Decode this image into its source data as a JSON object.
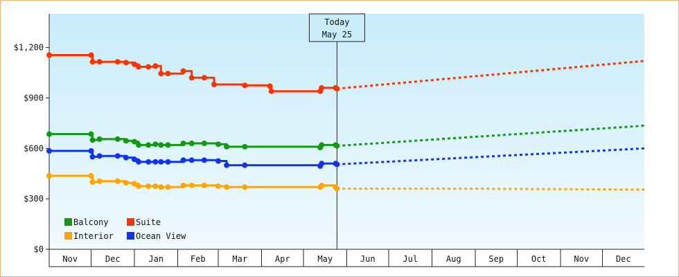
{
  "chart_data": {
    "type": "line",
    "ylim": [
      0,
      1400
    ],
    "y_ticks": [
      "$0",
      "$300",
      "$600",
      "$900",
      "$1,200"
    ],
    "y_tick_values": [
      0,
      300,
      600,
      900,
      1200
    ],
    "x_month_labels": [
      "Nov",
      "Dec",
      "Jan",
      "Feb",
      "Mar",
      "Apr",
      "May",
      "Jun",
      "Jul",
      "Aug",
      "Sep",
      "Oct",
      "Nov",
      "Dec"
    ],
    "x_range": [
      "2023-11-01",
      "2024-12-31"
    ],
    "month_starts": [
      "2023-11-01",
      "2023-12-01",
      "2024-01-01",
      "2024-02-01",
      "2024-03-01",
      "2024-04-01",
      "2024-05-01",
      "2024-06-01",
      "2024-07-01",
      "2024-08-01",
      "2024-09-01",
      "2024-10-01",
      "2024-11-01",
      "2024-12-01",
      "2025-01-01"
    ],
    "today": {
      "date": "2024-05-25",
      "label_line1": "Today",
      "label_line2": "May 25"
    },
    "grid": false,
    "legend_position": "bottom-left",
    "series": [
      {
        "name": "Suite",
        "color": "#ff3300",
        "points": [
          [
            "2023-11-01",
            1155
          ],
          [
            "2023-12-01",
            1155
          ],
          [
            "2023-12-02",
            1115
          ],
          [
            "2023-12-07",
            1115
          ],
          [
            "2023-12-20",
            1115
          ],
          [
            "2023-12-26",
            1110
          ],
          [
            "2024-01-01",
            1100
          ],
          [
            "2024-01-04",
            1085
          ],
          [
            "2024-01-11",
            1085
          ],
          [
            "2024-01-16",
            1090
          ],
          [
            "2024-01-20",
            1045
          ],
          [
            "2024-01-25",
            1045
          ],
          [
            "2024-02-05",
            1060
          ],
          [
            "2024-02-11",
            1020
          ],
          [
            "2024-02-20",
            1020
          ],
          [
            "2024-02-27",
            980
          ],
          [
            "2024-03-20",
            975
          ],
          [
            "2024-04-07",
            970
          ],
          [
            "2024-04-08",
            940
          ],
          [
            "2024-05-13",
            940
          ],
          [
            "2024-05-14",
            960
          ],
          [
            "2024-05-24",
            960
          ],
          [
            "2024-05-25",
            955
          ]
        ],
        "forecast": [
          [
            "2024-05-25",
            955
          ],
          [
            "2024-12-31",
            1120
          ]
        ]
      },
      {
        "name": "Balcony",
        "color": "#119911",
        "points": [
          [
            "2023-11-01",
            685
          ],
          [
            "2023-12-01",
            685
          ],
          [
            "2023-12-02",
            650
          ],
          [
            "2023-12-07",
            655
          ],
          [
            "2023-12-20",
            655
          ],
          [
            "2023-12-26",
            645
          ],
          [
            "2024-01-01",
            640
          ],
          [
            "2024-01-04",
            620
          ],
          [
            "2024-01-11",
            620
          ],
          [
            "2024-01-16",
            625
          ],
          [
            "2024-01-20",
            620
          ],
          [
            "2024-01-25",
            620
          ],
          [
            "2024-02-05",
            630
          ],
          [
            "2024-02-11",
            630
          ],
          [
            "2024-02-20",
            630
          ],
          [
            "2024-03-01",
            625
          ],
          [
            "2024-03-07",
            610
          ],
          [
            "2024-03-20",
            610
          ],
          [
            "2024-05-13",
            605
          ],
          [
            "2024-05-14",
            620
          ],
          [
            "2024-05-24",
            620
          ],
          [
            "2024-05-25",
            615
          ]
        ],
        "forecast": [
          [
            "2024-05-25",
            615
          ],
          [
            "2024-12-31",
            735
          ]
        ]
      },
      {
        "name": "Ocean View",
        "color": "#1133ee",
        "points": [
          [
            "2023-11-01",
            585
          ],
          [
            "2023-12-01",
            585
          ],
          [
            "2023-12-02",
            550
          ],
          [
            "2023-12-07",
            555
          ],
          [
            "2023-12-20",
            555
          ],
          [
            "2023-12-26",
            545
          ],
          [
            "2024-01-01",
            535
          ],
          [
            "2024-01-04",
            520
          ],
          [
            "2024-01-11",
            520
          ],
          [
            "2024-01-16",
            520
          ],
          [
            "2024-01-20",
            520
          ],
          [
            "2024-01-25",
            520
          ],
          [
            "2024-02-05",
            530
          ],
          [
            "2024-02-11",
            530
          ],
          [
            "2024-02-20",
            530
          ],
          [
            "2024-03-01",
            525
          ],
          [
            "2024-03-07",
            500
          ],
          [
            "2024-03-20",
            500
          ],
          [
            "2024-05-13",
            495
          ],
          [
            "2024-05-14",
            510
          ],
          [
            "2024-05-24",
            510
          ],
          [
            "2024-05-25",
            505
          ]
        ],
        "forecast": [
          [
            "2024-05-25",
            505
          ],
          [
            "2024-12-31",
            600
          ]
        ]
      },
      {
        "name": "Interior",
        "color": "#ffa500",
        "points": [
          [
            "2023-11-01",
            437
          ],
          [
            "2023-12-01",
            437
          ],
          [
            "2023-12-02",
            400
          ],
          [
            "2023-12-07",
            405
          ],
          [
            "2023-12-20",
            405
          ],
          [
            "2023-12-26",
            395
          ],
          [
            "2024-01-01",
            390
          ],
          [
            "2024-01-04",
            375
          ],
          [
            "2024-01-11",
            375
          ],
          [
            "2024-01-16",
            375
          ],
          [
            "2024-01-20",
            370
          ],
          [
            "2024-01-25",
            370
          ],
          [
            "2024-02-05",
            380
          ],
          [
            "2024-02-11",
            380
          ],
          [
            "2024-02-20",
            380
          ],
          [
            "2024-03-01",
            375
          ],
          [
            "2024-03-07",
            370
          ],
          [
            "2024-03-20",
            370
          ],
          [
            "2024-05-13",
            370
          ],
          [
            "2024-05-14",
            380
          ],
          [
            "2024-05-24",
            370
          ],
          [
            "2024-05-25",
            360
          ]
        ],
        "forecast": [
          [
            "2024-05-25",
            360
          ],
          [
            "2024-09-01",
            360
          ],
          [
            "2024-12-31",
            355
          ]
        ]
      }
    ],
    "legend": [
      {
        "label": "Balcony",
        "color": "#119911"
      },
      {
        "label": "Suite",
        "color": "#ff3300"
      },
      {
        "label": "Interior",
        "color": "#ffa500"
      },
      {
        "label": "Ocean View",
        "color": "#1133ee"
      }
    ]
  }
}
